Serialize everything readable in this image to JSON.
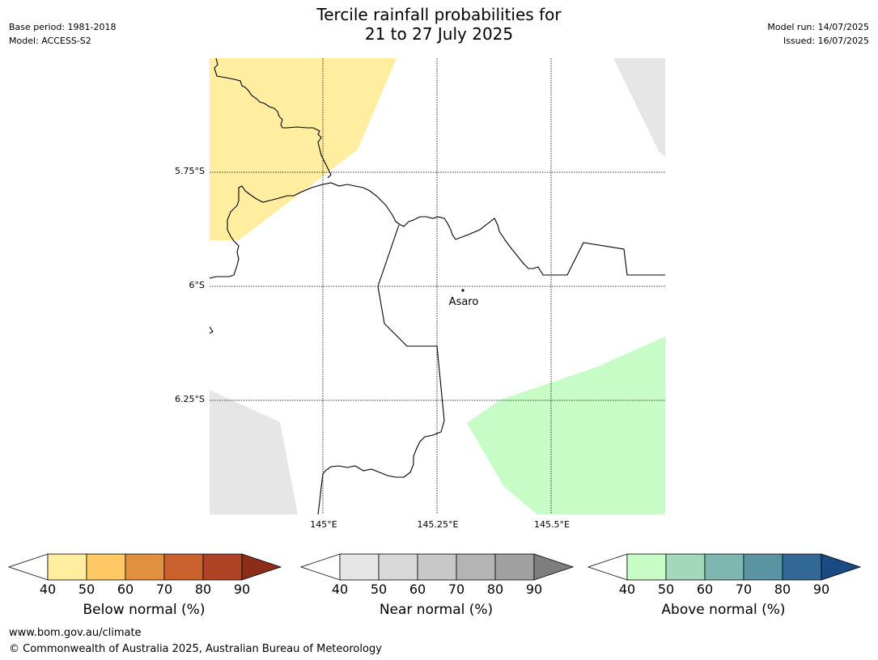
{
  "header": {
    "title_line1": "Tercile rainfall probabilities for",
    "title_line2": "21 to 27 July 2025",
    "base_period": "Base period: 1981-2018",
    "model": "Model: ACCESS-S2",
    "model_run": "Model run: 14/07/2025",
    "issued": "Issued: 16/07/2025"
  },
  "map": {
    "latitude_labels": [
      "5.75°S",
      "6°S",
      "6.25°S"
    ],
    "longitude_labels": [
      "145°E",
      "145.25°E",
      "145.5°E"
    ],
    "place_label": "Asaro",
    "region_colors": {
      "below_normal_40_50": "#ffeda0",
      "near_normal_40_50": "#e6e6e6",
      "above_normal_40_50": "#c7fcc7"
    }
  },
  "legends": [
    {
      "title": "Below normal (%)",
      "ticks": [
        "40",
        "50",
        "60",
        "70",
        "80",
        "90"
      ],
      "colors": [
        "#ffeda0",
        "#fec965",
        "#e0903f",
        "#cb622e",
        "#ad4324",
        "#8c2d1a"
      ]
    },
    {
      "title": "Near normal (%)",
      "ticks": [
        "40",
        "50",
        "60",
        "70",
        "80",
        "90"
      ],
      "colors": [
        "#e6e6e6",
        "#d9d9d9",
        "#c8c8c8",
        "#b4b4b4",
        "#a0a0a0",
        "#7e7e7e"
      ]
    },
    {
      "title": "Above normal (%)",
      "ticks": [
        "40",
        "50",
        "60",
        "70",
        "80",
        "90"
      ],
      "colors": [
        "#c7fcc7",
        "#a2d9bd",
        "#7eb7b0",
        "#5a94a2",
        "#326895",
        "#1a4a83"
      ]
    }
  ],
  "footer": {
    "website": "www.bom.gov.au/climate",
    "copyright": "© Commonwealth of Australia 2025, Australian Bureau of Meteorology"
  }
}
